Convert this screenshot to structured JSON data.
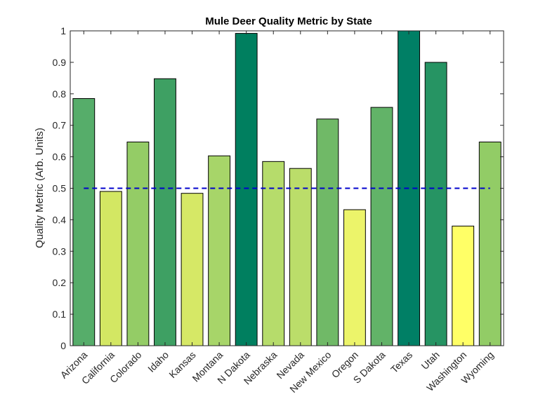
{
  "chart_data": {
    "type": "bar",
    "title": "Mule Deer Quality Metric by State",
    "xlabel": "",
    "ylabel": "Quality Metric (Arb. Units)",
    "ylim": [
      0,
      1
    ],
    "yticks": [
      "0",
      "0.1",
      "0.2",
      "0.3",
      "0.4",
      "0.5",
      "0.6",
      "0.7",
      "0.8",
      "0.9",
      "1"
    ],
    "categories": [
      "Arizona",
      "California",
      "Colorado",
      "Idaho",
      "Kansas",
      "Montana",
      "N Dakota",
      "Nebraska",
      "Nevada",
      "New Mexico",
      "Oregon",
      "S Dakota",
      "Texas",
      "Utah",
      "Washington",
      "Wyoming"
    ],
    "values": [
      0.785,
      0.49,
      0.647,
      0.848,
      0.484,
      0.603,
      0.992,
      0.585,
      0.563,
      0.72,
      0.432,
      0.757,
      1.0,
      0.9,
      0.38,
      0.647
    ],
    "colors": [
      "#56ad6a",
      "#d3e763",
      "#94cc66",
      "#3ea063",
      "#d6e866",
      "#a7d569",
      "#007f5f",
      "#b6dc6b",
      "#bbdd6a",
      "#70b967",
      "#ecf46a",
      "#62b368",
      "#007f65",
      "#269463",
      "#ffff66",
      "#92cc66"
    ],
    "reference_line": {
      "value": 0.5,
      "style": "dashed",
      "color": "#0000cc"
    },
    "grid": false,
    "legend": "none"
  }
}
